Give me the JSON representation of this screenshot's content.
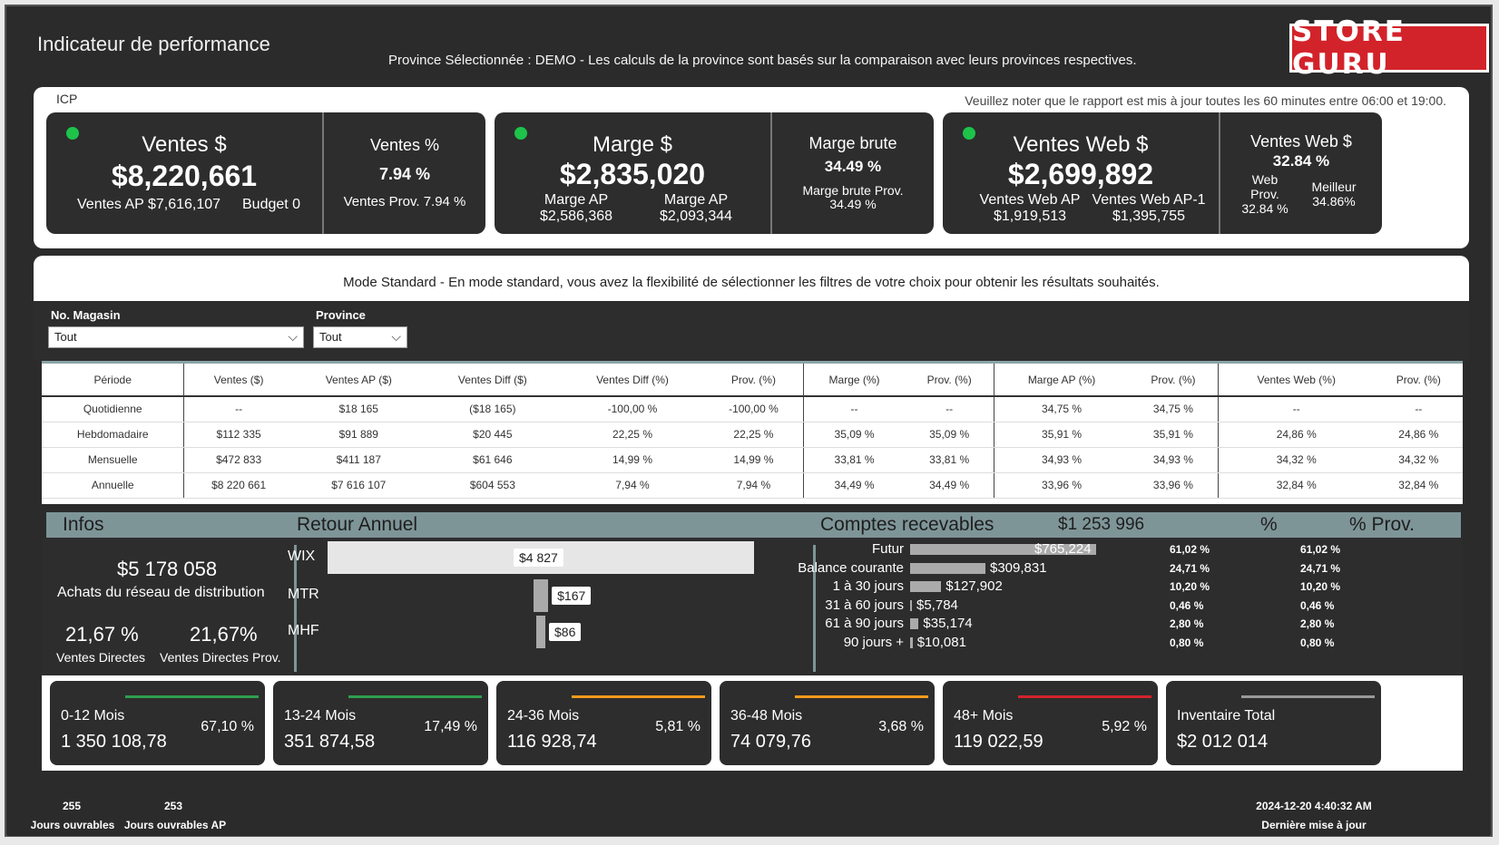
{
  "header": {
    "title": "Indicateur de performance",
    "subtitle": "Province Sélectionnée : DEMO - Les calculs de la province sont basés sur la comparaison avec leurs provinces respectives.",
    "logo_text": "STORE GURU"
  },
  "icp": {
    "label": "ICP",
    "note": "Veuillez noter que le rapport est mis à jour toutes les 60 minutes entre 06:00 et 19:00.",
    "ventes": {
      "title": "Ventes $",
      "value": "$8,220,661",
      "ap": "Ventes AP $7,616,107",
      "budget": "Budget 0"
    },
    "ventes_pct": {
      "title": "Ventes %",
      "value": "7.94 %",
      "prov": "Ventes Prov. 7.94 %"
    },
    "marge": {
      "title": "Marge $",
      "value": "$2,835,020",
      "ap_label": "Marge AP",
      "ap_value": "$2,586,368",
      "ap2_label": "Marge AP",
      "ap2_value": "$2,093,344"
    },
    "marge_brute": {
      "title": "Marge brute",
      "value": "34.49 %",
      "prov_label": "Marge brute Prov.",
      "prov_value": "34.49 %"
    },
    "web": {
      "title": "Ventes Web $",
      "value": "$2,699,892",
      "ap_label": "Ventes Web AP",
      "ap_value": "$1,919,513",
      "ap1_label": "Ventes Web AP-1",
      "ap1_value": "$1,395,755"
    },
    "web_pct": {
      "title": "Ventes Web $",
      "value": "32.84 %",
      "prov_l1": "Web",
      "prov_l2": "Prov.",
      "prov_value": "32.84 %",
      "best_label": "Meilleur",
      "best_value": "34.86%"
    },
    "status_color": "#1ec34a"
  },
  "mode": {
    "text": "Mode Standard - En mode standard, vous avez la flexibilité de sélectionner les filtres de votre choix pour obtenir les résultats souhaités."
  },
  "filters": {
    "magasin_label": "No. Magasin",
    "magasin_value": "Tout",
    "province_label": "Province",
    "province_value": "Tout"
  },
  "table": {
    "headers": [
      "Période",
      "Ventes ($)",
      "Ventes AP ($)",
      "Ventes Diff ($)",
      "Ventes Diff (%)",
      "Prov. (%)",
      "Marge (%)",
      "Prov. (%)",
      "Marge AP (%)",
      "Prov. (%)",
      "Ventes Web (%)",
      "Prov. (%)"
    ],
    "rows": [
      [
        "Quotidienne",
        "--",
        "$18 165",
        "($18 165)",
        "-100,00 %",
        "-100,00 %",
        "--",
        "--",
        "34,75 %",
        "34,75 %",
        "--",
        "--"
      ],
      [
        "Hebdomadaire",
        "$112 335",
        "$91 889",
        "$20 445",
        "22,25 %",
        "22,25 %",
        "35,09 %",
        "35,09 %",
        "35,91 %",
        "35,91 %",
        "24,86 %",
        "24,86 %"
      ],
      [
        "Mensuelle",
        "$472 833",
        "$411 187",
        "$61 646",
        "14,99 %",
        "14,99 %",
        "33,81 %",
        "33,81 %",
        "34,93 %",
        "34,93 %",
        "34,32 %",
        "34,32 %"
      ],
      [
        "Annuelle",
        "$8 220 661",
        "$7 616 107",
        "$604 553",
        "7,94 %",
        "7,94 %",
        "34,49 %",
        "34,49 %",
        "33,96 %",
        "33,96 %",
        "32,84 %",
        "32,84 %"
      ]
    ]
  },
  "sections": {
    "infos": "Infos",
    "retour": "Retour Annuel",
    "comptes": "Comptes recevables",
    "comptes_total": "$1 253 996",
    "pct": "%",
    "pct_prov": "% Prov."
  },
  "infos": {
    "achats_value": "$5 178 058",
    "achats_label": "Achats du réseau de distribution",
    "directes_value": "21,67 %",
    "directes_label": "Ventes Directes",
    "directes_prov_value": "21,67%",
    "directes_prov_label": "Ventes Directes Prov."
  },
  "retour": [
    {
      "name": "WIX",
      "value": "$4 827",
      "amount": 4827
    },
    {
      "name": "MTR",
      "value": "$167",
      "amount": 167
    },
    {
      "name": "MHF",
      "value": "$86",
      "amount": 86
    }
  ],
  "comptes": [
    {
      "label": "Futur",
      "value": "$765,224",
      "pct": "61,02 %",
      "prov": "61,02 %",
      "share": 61.02
    },
    {
      "label": "Balance courante",
      "value": "$309,831",
      "pct": "24,71 %",
      "prov": "24,71 %",
      "share": 24.71
    },
    {
      "label": "1 à 30 jours",
      "value": "$127,902",
      "pct": "10,20 %",
      "prov": "10,20 %",
      "share": 10.2
    },
    {
      "label": "31 à 60 jours",
      "value": "$5,784",
      "pct": "0,46 %",
      "prov": "0,46 %",
      "share": 0.46
    },
    {
      "label": "61 à 90 jours",
      "value": "$35,174",
      "pct": "2,80 %",
      "prov": "2,80 %",
      "share": 2.8
    },
    {
      "label": "90 jours +",
      "value": "$10,081",
      "pct": "0,80 %",
      "prov": "0,80 %",
      "share": 0.8
    }
  ],
  "aging": [
    {
      "label": "0-12 Mois",
      "value": "1 350 108,78",
      "pct": "67,10 %",
      "color": "#2e9e4e"
    },
    {
      "label": "13-24 Mois",
      "value": "351 874,58",
      "pct": "17,49 %",
      "color": "#2e9e4e"
    },
    {
      "label": "24-36 Mois",
      "value": "116 928,74",
      "pct": "5,81 %",
      "color": "#f29b1d"
    },
    {
      "label": "36-48 Mois",
      "value": "74 079,76",
      "pct": "3,68 %",
      "color": "#f29b1d"
    },
    {
      "label": "48+ Mois",
      "value": "119 022,59",
      "pct": "5,92 %",
      "color": "#d3232a"
    },
    {
      "label": "Inventaire Total",
      "value": "$2 012 014",
      "pct": "",
      "color": "#999999"
    }
  ],
  "footer": {
    "jours": "255",
    "jours_label": "Jours ouvrables",
    "jours_ap": "253",
    "jours_ap_label": "Jours ouvrables AP",
    "timestamp": "2024-12-20 4:40:32 AM",
    "timestamp_label": "Dernière mise à jour"
  }
}
